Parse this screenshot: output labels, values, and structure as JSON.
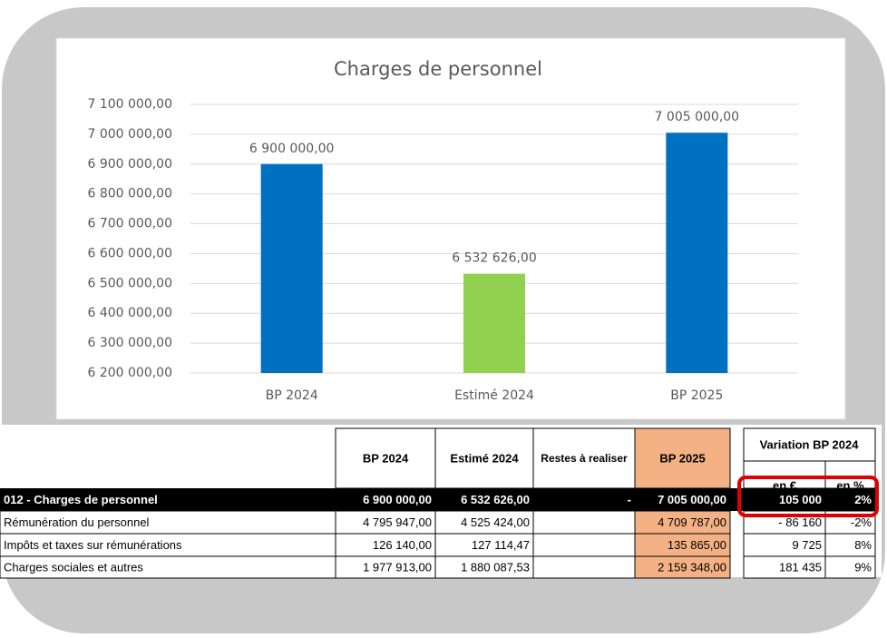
{
  "chart_data": {
    "type": "bar",
    "title": "Charges de personnel",
    "categories": [
      "BP 2024",
      "Estimé 2024",
      "BP 2025"
    ],
    "values": [
      6900000,
      6532626,
      7005000
    ],
    "value_labels": [
      "6 900 000,00",
      "6 532 626,00",
      "7 005 000,00"
    ],
    "colors": [
      "#0070c0",
      "#92d050",
      "#0070c0"
    ],
    "ylim": [
      6200000,
      7100000
    ],
    "yticks": [
      {
        "value": 6200000,
        "label": "6 200 000,00"
      },
      {
        "value": 6300000,
        "label": "6 300 000,00"
      },
      {
        "value": 6400000,
        "label": "6 400 000,00"
      },
      {
        "value": 6500000,
        "label": "6 500 000,00"
      },
      {
        "value": 6600000,
        "label": "6 600 000,00"
      },
      {
        "value": 6700000,
        "label": "6 700 000,00"
      },
      {
        "value": 6800000,
        "label": "6 800 000,00"
      },
      {
        "value": 6900000,
        "label": "6 900 000,00"
      },
      {
        "value": 7000000,
        "label": "7 000 000,00"
      },
      {
        "value": 7100000,
        "label": "7 100 000,00"
      }
    ],
    "grid": true
  },
  "table": {
    "headers": [
      "BP 2024",
      "Estimé 2024",
      "Restes à realiser",
      "BP 2025"
    ],
    "variation_header": "Variation BP 2024",
    "variation_subheaders": [
      "en €",
      "en %"
    ],
    "rows": [
      [
        "012 - Charges de personnel",
        "6 900 000,00",
        "6 532 626,00",
        "-",
        "7 005 000,00",
        "105 000",
        "2%"
      ],
      [
        "Rémunération du personnel",
        "4 795 947,00",
        "4 525 424,00",
        null,
        "4 709 787,00",
        "- 86 160",
        "-2%"
      ],
      [
        "Impôts et taxes sur rémunérations",
        "126 140,00",
        "127 114,47",
        null,
        "135 865,00",
        "9 725",
        "8%"
      ],
      [
        "Charges sociales et autres",
        "1 977 913,00",
        "1 880 087,53",
        null,
        "2 159 348,00",
        "181 435",
        "9%"
      ]
    ]
  }
}
